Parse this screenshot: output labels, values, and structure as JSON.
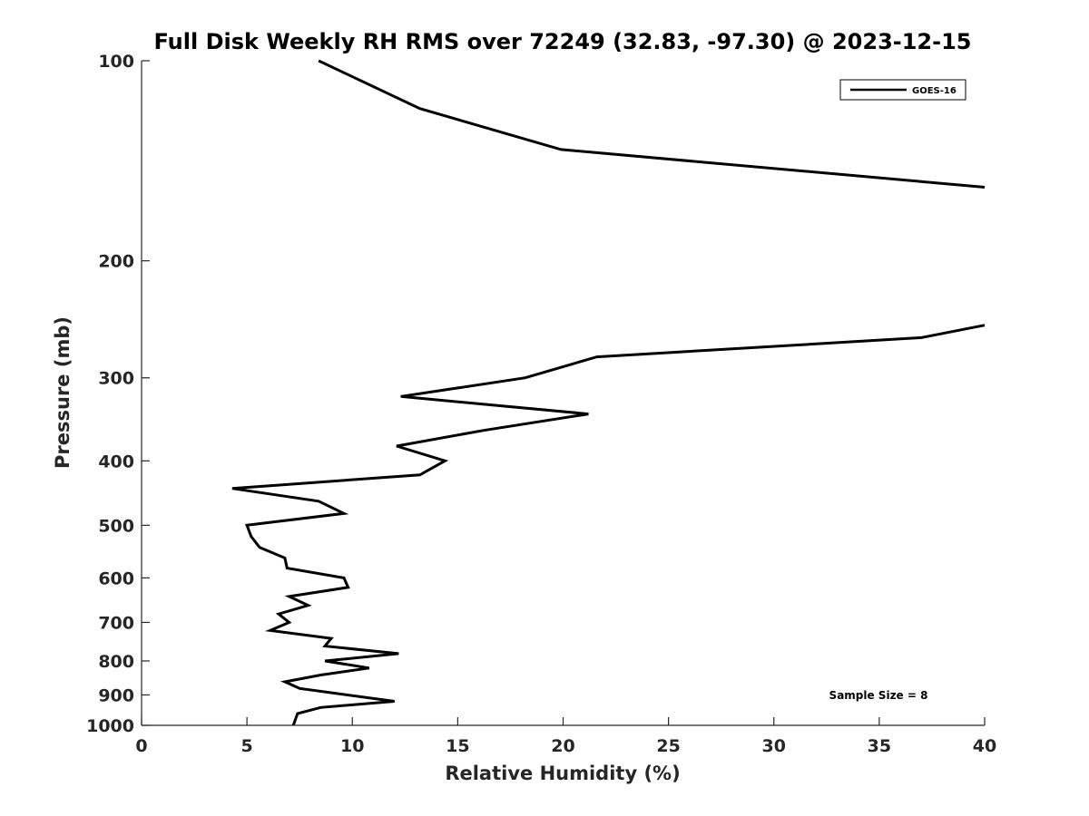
{
  "chart_data": {
    "type": "line",
    "title": "Full Disk Weekly RH RMS over 72249 (32.83, -97.30) @ 2023-12-15",
    "xlabel": "Relative Humidity (%)",
    "ylabel": "Pressure (mb)",
    "xlim": [
      0,
      40
    ],
    "ylim": [
      1000,
      100
    ],
    "yscale": "log",
    "grid": false,
    "legend_position": "top-right",
    "x_ticks": [
      0,
      5,
      10,
      15,
      20,
      25,
      30,
      35,
      40
    ],
    "y_ticks": [
      100,
      200,
      300,
      400,
      500,
      600,
      700,
      800,
      900,
      1000
    ],
    "annotation": "Sample Size = 8",
    "series": [
      {
        "name": "GOES-16",
        "color": "#000000",
        "segments": [
          [
            {
              "x": 8.4,
              "y": 100
            },
            {
              "x": 13.2,
              "y": 118
            },
            {
              "x": 19.9,
              "y": 136
            },
            {
              "x": 37.0,
              "y": 152
            },
            {
              "x": 40.0,
              "y": 155
            }
          ],
          [
            {
              "x": 40.0,
              "y": 250
            },
            {
              "x": 37.0,
              "y": 261
            },
            {
              "x": 21.6,
              "y": 279
            },
            {
              "x": 18.2,
              "y": 300
            },
            {
              "x": 12.3,
              "y": 320
            },
            {
              "x": 21.2,
              "y": 340
            },
            {
              "x": 16.2,
              "y": 360
            },
            {
              "x": 12.1,
              "y": 380
            },
            {
              "x": 14.4,
              "y": 400
            },
            {
              "x": 13.2,
              "y": 420
            },
            {
              "x": 4.3,
              "y": 440
            },
            {
              "x": 8.4,
              "y": 460
            },
            {
              "x": 9.6,
              "y": 480
            },
            {
              "x": 5.0,
              "y": 500
            },
            {
              "x": 5.2,
              "y": 520
            },
            {
              "x": 5.6,
              "y": 540
            },
            {
              "x": 6.8,
              "y": 560
            },
            {
              "x": 6.9,
              "y": 580
            },
            {
              "x": 9.6,
              "y": 600
            },
            {
              "x": 9.8,
              "y": 620
            },
            {
              "x": 7.0,
              "y": 640
            },
            {
              "x": 7.9,
              "y": 660
            },
            {
              "x": 6.5,
              "y": 680
            },
            {
              "x": 7.0,
              "y": 700
            },
            {
              "x": 6.1,
              "y": 720
            },
            {
              "x": 9.0,
              "y": 740
            },
            {
              "x": 8.7,
              "y": 760
            },
            {
              "x": 12.2,
              "y": 780
            },
            {
              "x": 8.7,
              "y": 800
            },
            {
              "x": 10.8,
              "y": 820
            },
            {
              "x": 8.5,
              "y": 840
            },
            {
              "x": 6.8,
              "y": 860
            },
            {
              "x": 7.5,
              "y": 880
            },
            {
              "x": 12.0,
              "y": 920
            },
            {
              "x": 8.5,
              "y": 940
            },
            {
              "x": 7.4,
              "y": 960
            },
            {
              "x": 7.2,
              "y": 1000
            }
          ]
        ]
      }
    ]
  }
}
